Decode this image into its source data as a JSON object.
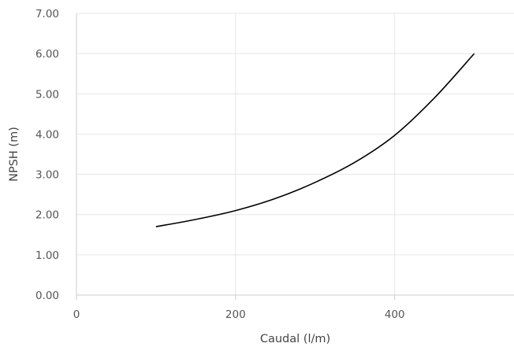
{
  "chart_data": {
    "type": "line",
    "title": "",
    "xlabel": "Caudal (l/m)",
    "ylabel": "NPSH (m)",
    "xlim": [
      0,
      550
    ],
    "ylim": [
      0,
      7
    ],
    "x_ticks": [
      0,
      200,
      400
    ],
    "x_tick_labels": [
      "0",
      "200",
      "400"
    ],
    "y_ticks": [
      0,
      1,
      2,
      3,
      4,
      5,
      6,
      7
    ],
    "y_tick_labels": [
      "0.00",
      "1.00",
      "2.00",
      "3.00",
      "4.00",
      "5.00",
      "6.00",
      "7.00"
    ],
    "grid": true,
    "legend": "none",
    "series": [
      {
        "color": "#000000",
        "x": [
          100,
          150,
          200,
          250,
          300,
          350,
          400,
          450,
          500
        ],
        "y": [
          1.7,
          1.88,
          2.1,
          2.4,
          2.8,
          3.3,
          3.97,
          4.9,
          6.0
        ]
      }
    ],
    "colors": {
      "grid": "#e6e6e6",
      "axis": "#cccccc",
      "tick_text": "#555555",
      "title_text": "#444444"
    }
  }
}
